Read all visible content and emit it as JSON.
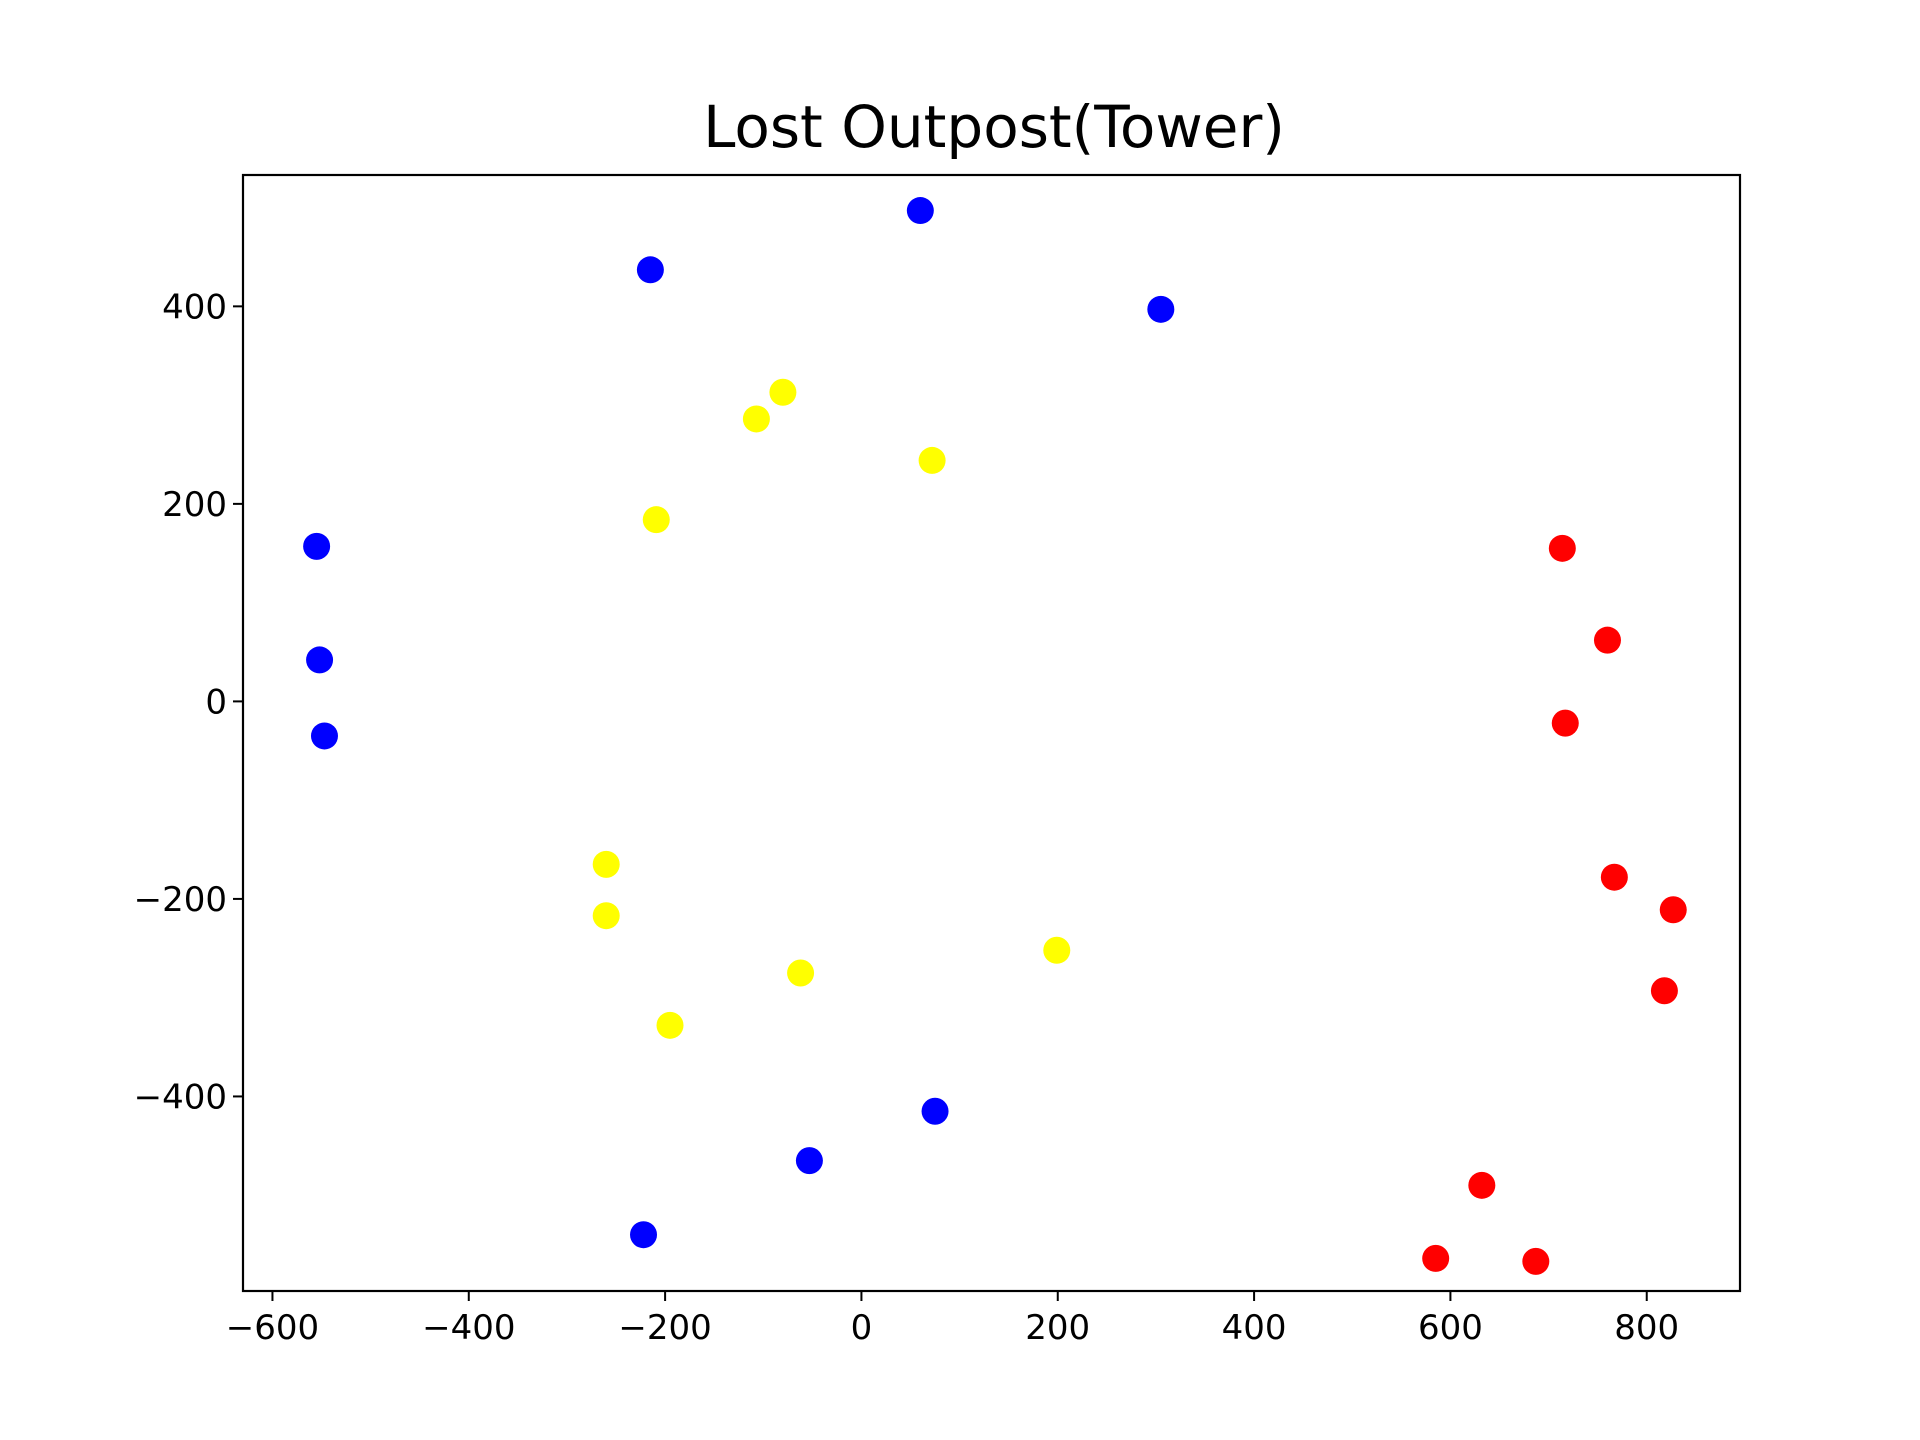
{
  "chart_data": {
    "type": "scatter",
    "title": "Lost Outpost(Tower)",
    "xlabel": "",
    "ylabel": "",
    "xlim": [
      -630,
      895
    ],
    "ylim": [
      -597,
      533
    ],
    "xticks": [
      -600,
      -400,
      -200,
      0,
      200,
      400,
      600,
      800
    ],
    "yticks": [
      -400,
      -200,
      0,
      200,
      400
    ],
    "grid": false,
    "legend": "none",
    "series": [
      {
        "color": "#0000ff",
        "points": [
          [
            60,
            497
          ],
          [
            -215,
            437
          ],
          [
            305,
            397
          ],
          [
            -555,
            157
          ],
          [
            -552,
            42
          ],
          [
            -547,
            -35
          ],
          [
            75,
            -415
          ],
          [
            -53,
            -465
          ],
          [
            -222,
            -540
          ]
        ]
      },
      {
        "color": "#ffff00",
        "points": [
          [
            -80,
            313
          ],
          [
            -107,
            286
          ],
          [
            72,
            244
          ],
          [
            -209,
            184
          ],
          [
            -260,
            -165
          ],
          [
            -260,
            -217
          ],
          [
            199,
            -252
          ],
          [
            -62,
            -275
          ],
          [
            -195,
            -328
          ]
        ]
      },
      {
        "color": "#ff0000",
        "points": [
          [
            714,
            155
          ],
          [
            760,
            62
          ],
          [
            717,
            -22
          ],
          [
            767,
            -178
          ],
          [
            827,
            -211
          ],
          [
            818,
            -293
          ],
          [
            632,
            -490
          ],
          [
            585,
            -564
          ],
          [
            687,
            -567
          ]
        ]
      }
    ]
  }
}
